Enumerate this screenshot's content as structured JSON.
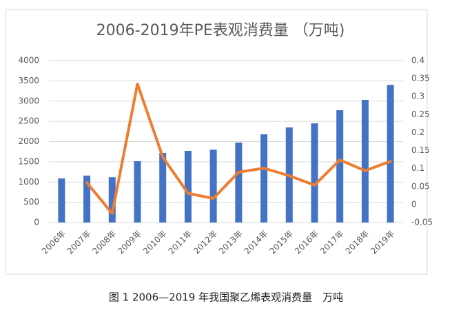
{
  "chart_data": {
    "type": "bar_line",
    "title": "2006-2019年PE表观消费量 （万吨)",
    "categories": [
      "2006年",
      "2007年",
      "2008年",
      "2009年",
      "2010年",
      "2011年",
      "2012年",
      "2013年",
      "2014年",
      "2015年",
      "2016年",
      "2017年",
      "2018年",
      "2019年"
    ],
    "series": [
      {
        "type": "bar",
        "color": "#4472c4",
        "values": [
          1090,
          1160,
          1120,
          1515,
          1720,
          1770,
          1800,
          1975,
          2180,
          2350,
          2450,
          2775,
          3030,
          3400
        ]
      },
      {
        "type": "line",
        "axis": "y2",
        "color": "#ed7d31",
        "values": [
          null,
          0.061,
          -0.025,
          0.335,
          0.132,
          0.031,
          0.017,
          0.09,
          0.101,
          0.08,
          0.054,
          0.124,
          0.094,
          0.12
        ]
      }
    ],
    "ylim": [
      0,
      4000
    ],
    "yticks": [
      0,
      500,
      1000,
      1500,
      2000,
      2500,
      3000,
      3500,
      4000
    ],
    "y2lim": [
      -0.05,
      0.4
    ],
    "y2ticks": [
      -0.05,
      0,
      0.05,
      0.1,
      0.15,
      0.2,
      0.25,
      0.3,
      0.35,
      0.4
    ],
    "grid": true
  },
  "caption": "图 1 2006—2019 年我国聚乙烯表观消费量　万吨"
}
